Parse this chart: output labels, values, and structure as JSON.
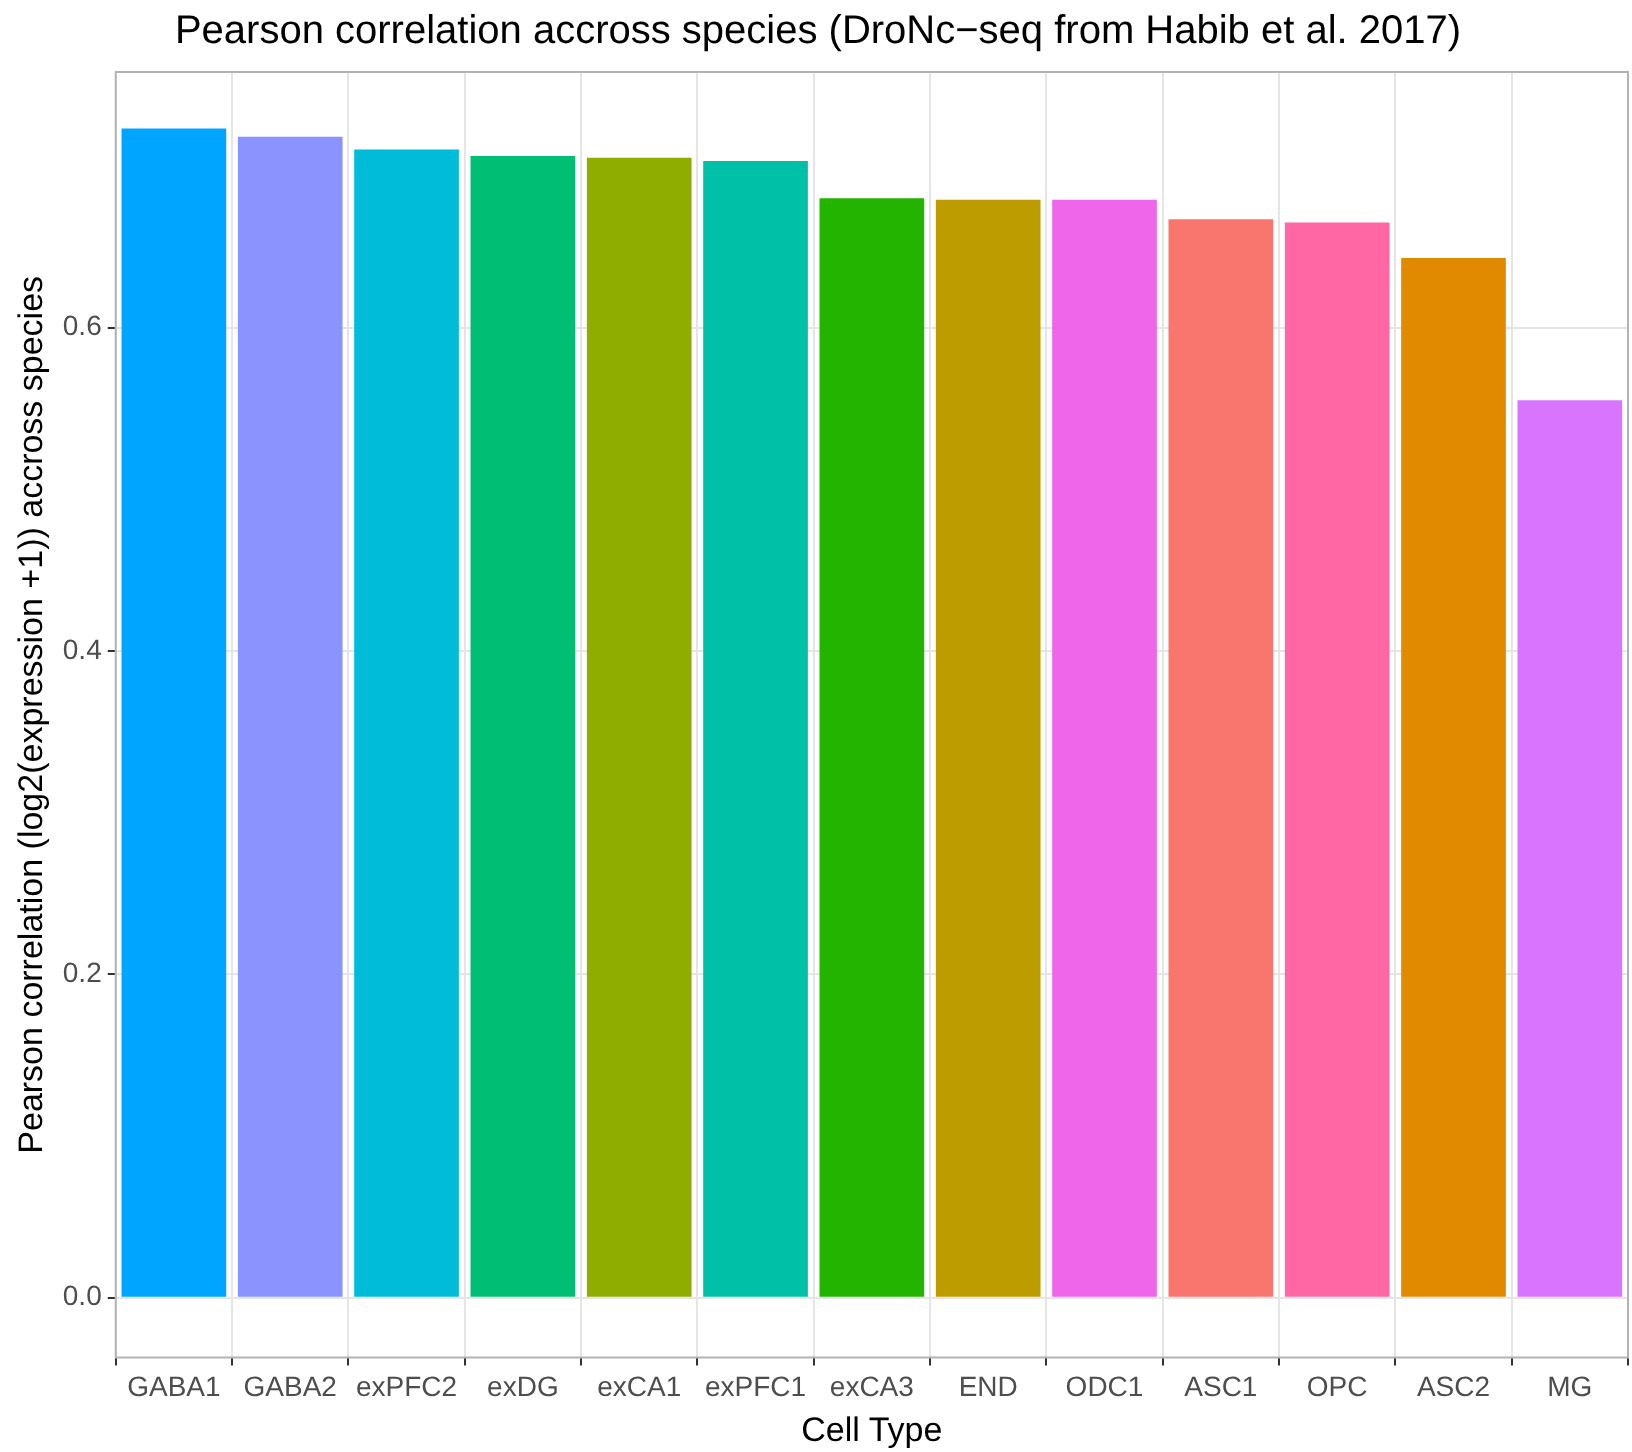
{
  "chart_data": {
    "type": "bar",
    "title": "Pearson correlation accross species (DroNc−seq from Habib et al. 2017)",
    "xlabel": "Cell Type",
    "ylabel": "Pearson correlation (log2(expression +1)) accross species",
    "categories": [
      "GABA1",
      "GABA2",
      "exPFC2",
      "exDG",
      "exCA1",
      "exPFC1",
      "exCA3",
      "END",
      "ODC1",
      "ASC1",
      "OPC",
      "ASC2",
      "MG"
    ],
    "values": [
      0.723,
      0.718,
      0.71,
      0.706,
      0.705,
      0.703,
      0.68,
      0.679,
      0.679,
      0.667,
      0.665,
      0.643,
      0.555
    ],
    "colors": [
      "#00a5ff",
      "#8b93ff",
      "#00bcd8",
      "#00bf74",
      "#8fac00",
      "#00c1a7",
      "#23b400",
      "#bd9c00",
      "#f066ea",
      "#f8766d",
      "#ff67a4",
      "#e18a00",
      "#d874fd"
    ],
    "ylim": [
      -0.037,
      0.758
    ],
    "yticks": [
      {
        "value": 0,
        "label": "0.0"
      },
      {
        "value": 0.2,
        "label": "0.2"
      },
      {
        "value": 0.4,
        "label": "0.4"
      },
      {
        "value": 0.6,
        "label": "0.6"
      }
    ],
    "grid": true,
    "legend": false
  }
}
